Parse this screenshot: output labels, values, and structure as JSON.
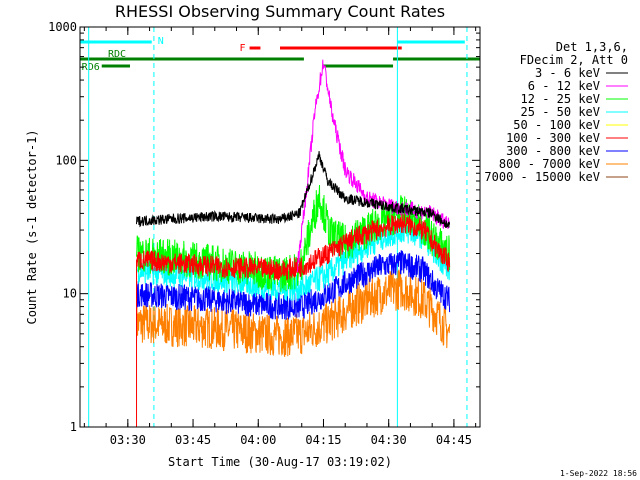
{
  "chart_data": {
    "type": "line",
    "title": "RHESSI Observing Summary Count Rates",
    "xlabel": "Start Time (30-Aug-17 03:19:02)",
    "ylabel": "Count Rate (s-1 detector-1)",
    "y_scale": "log",
    "ylim": [
      1,
      1000
    ],
    "x_ticks": [
      "03:30",
      "03:45",
      "04:00",
      "04:15",
      "04:30",
      "04:45"
    ],
    "y_ticks": [
      "1",
      "10",
      "100",
      "1000"
    ],
    "xlim_minutes": [
      19,
      111
    ],
    "legend": {
      "position": "right",
      "header": [
        "Det 1,3,6,",
        "FDecim 2, Att 0"
      ],
      "entries": [
        {
          "label": "3 - 6 keV",
          "color": "#000000"
        },
        {
          "label": "6 - 12 keV",
          "color": "#ff00ff"
        },
        {
          "label": "12 - 25 keV",
          "color": "#00ff00"
        },
        {
          "label": "25 - 50 keV",
          "color": "#00ffff"
        },
        {
          "label": "50 - 100 keV",
          "color": "#ffff00"
        },
        {
          "label": "100 - 300 keV",
          "color": "#ff0000"
        },
        {
          "label": "300 - 800 keV",
          "color": "#0000ff"
        },
        {
          "label": "800 - 7000 keV",
          "color": "#ff8000"
        },
        {
          "label": "7000 - 15000 keV",
          "color": "#8b4513"
        }
      ]
    },
    "series": [
      {
        "key": "s3_6",
        "color": "#000000",
        "x": [
          32,
          50,
          65,
          69.5,
          71.5,
          74,
          76,
          80,
          90,
          100,
          104
        ],
        "y": [
          35,
          38,
          36,
          40,
          62,
          110,
          70,
          52,
          45,
          40,
          32
        ]
      },
      {
        "key": "s6_12",
        "color": "#ff00ff",
        "x": [
          69,
          71,
          73,
          75,
          77,
          80,
          85,
          90,
          100,
          104
        ],
        "y": [
          16,
          55,
          230,
          550,
          220,
          85,
          52,
          46,
          40,
          32
        ]
      },
      {
        "key": "s12_25",
        "color": "#00ff00",
        "x": [
          32,
          50,
          65,
          69.5,
          72,
          74,
          76.5,
          80,
          88,
          93,
          97,
          100,
          104
        ],
        "y": [
          20,
          17,
          14,
          15,
          30,
          55,
          28,
          24,
          34,
          40,
          34,
          26,
          20
        ]
      },
      {
        "key": "s25_50",
        "color": "#00ffff",
        "x": [
          32,
          50,
          65,
          70,
          76,
          82,
          88,
          93,
          98,
          101,
          104
        ],
        "y": [
          15,
          13,
          11,
          11,
          14,
          20,
          26,
          30,
          27,
          20,
          15
        ]
      },
      {
        "key": "s100_300",
        "color": "#ff0000",
        "x": [
          32,
          50,
          66,
          70,
          76,
          82,
          88,
          93,
          98,
          101,
          104
        ],
        "y": [
          18,
          16,
          15,
          16,
          20,
          26,
          31,
          34,
          30,
          22,
          17
        ]
      },
      {
        "key": "s300_800",
        "color": "#0000ff",
        "x": [
          32,
          50,
          65,
          70,
          76,
          82,
          88,
          93,
          98,
          101,
          104
        ],
        "y": [
          10,
          9,
          8,
          8,
          10,
          13,
          16,
          17,
          15,
          11,
          9
        ]
      },
      {
        "key": "s800_7000",
        "color": "#ff8000",
        "x": [
          32,
          50,
          65,
          70,
          76,
          82,
          88,
          93,
          98,
          101,
          104
        ],
        "y": [
          6,
          5.5,
          4.8,
          5,
          6,
          8,
          10,
          11,
          9,
          7,
          5
        ]
      }
    ],
    "vertical_lines": [
      {
        "x": 21,
        "style": "solid",
        "color": "#00ffff"
      },
      {
        "x": 36,
        "style": "dashed",
        "color": "#00ffff"
      },
      {
        "x": 92,
        "style": "solid",
        "color": "#00ffff"
      },
      {
        "x": 108,
        "style": "dashed",
        "color": "#00ffff"
      }
    ],
    "flag_bars": [
      {
        "label": "N",
        "color": "#00ffff",
        "y": 42,
        "segments": [
          [
            19,
            35.5
          ],
          [
            92,
            107.5
          ]
        ]
      },
      {
        "label": "F",
        "color": "#ff0000",
        "y": 48,
        "segments": [
          [
            58,
            60.5
          ],
          [
            65,
            93
          ]
        ]
      },
      {
        "label": "RDC",
        "color": "#008000",
        "y": 59,
        "segments": [
          [
            19,
            70.5
          ]
        ]
      },
      {
        "label": "",
        "color": "#008000",
        "y": 59,
        "segments": [
          [
            91,
            111
          ]
        ]
      },
      {
        "label": "RD6",
        "color": "#008000",
        "y": 66,
        "segments": [
          [
            24,
            30.5
          ],
          [
            75,
            91
          ]
        ]
      }
    ]
  },
  "timestamp": "1-Sep-2022 18:56"
}
